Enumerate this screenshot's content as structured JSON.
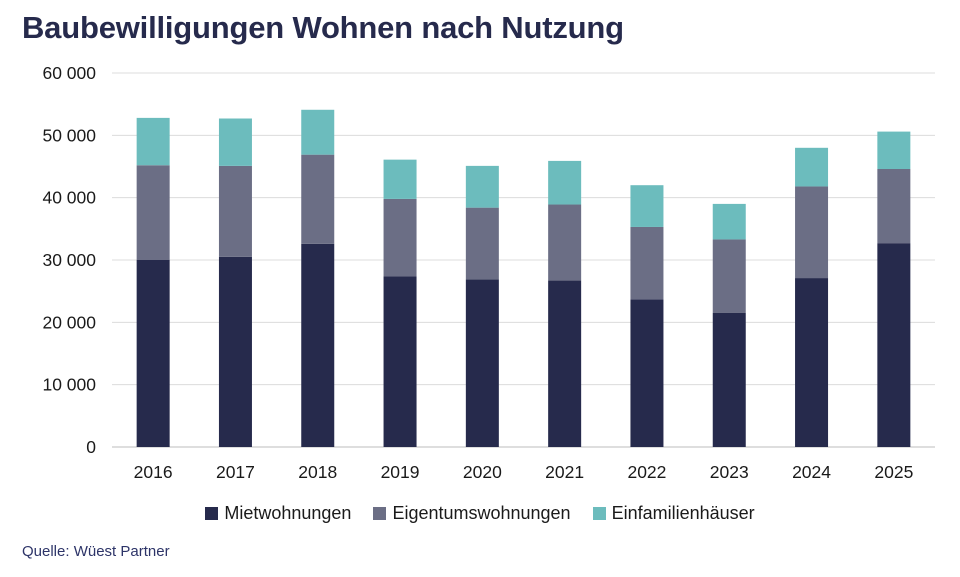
{
  "title": "Baubewilligungen Wohnen nach Nutzung",
  "source": "Quelle: Wüest Partner",
  "chart_data": {
    "type": "bar",
    "stacked": true,
    "title": "Baubewilligungen Wohnen nach Nutzung",
    "xlabel": "",
    "ylabel": "",
    "ylim": [
      0,
      60000
    ],
    "yticks": [
      0,
      10000,
      20000,
      30000,
      40000,
      50000,
      60000
    ],
    "ytick_labels": [
      "0",
      "10 000",
      "20 000",
      "30 000",
      "40 000",
      "50 000",
      "60 000"
    ],
    "grid": true,
    "legend_position": "bottom",
    "categories": [
      "2016",
      "2017",
      "2018",
      "2019",
      "2020",
      "2021",
      "2022",
      "2023",
      "2024",
      "2025"
    ],
    "series": [
      {
        "name": "Mietwohnungen",
        "color": "#262a4c",
        "values": [
          30000,
          30500,
          32600,
          27400,
          26900,
          26700,
          23700,
          21500,
          27100,
          32700
        ]
      },
      {
        "name": "Eigentumswohnungen",
        "color": "#6b6e85",
        "values": [
          15200,
          14600,
          14300,
          12400,
          11500,
          12200,
          11600,
          11800,
          14700,
          11900
        ]
      },
      {
        "name": "Einfamilienhäuser",
        "color": "#6cbcbd",
        "values": [
          7600,
          7600,
          7200,
          6300,
          6700,
          7000,
          6700,
          5700,
          6200,
          6000
        ]
      }
    ]
  }
}
